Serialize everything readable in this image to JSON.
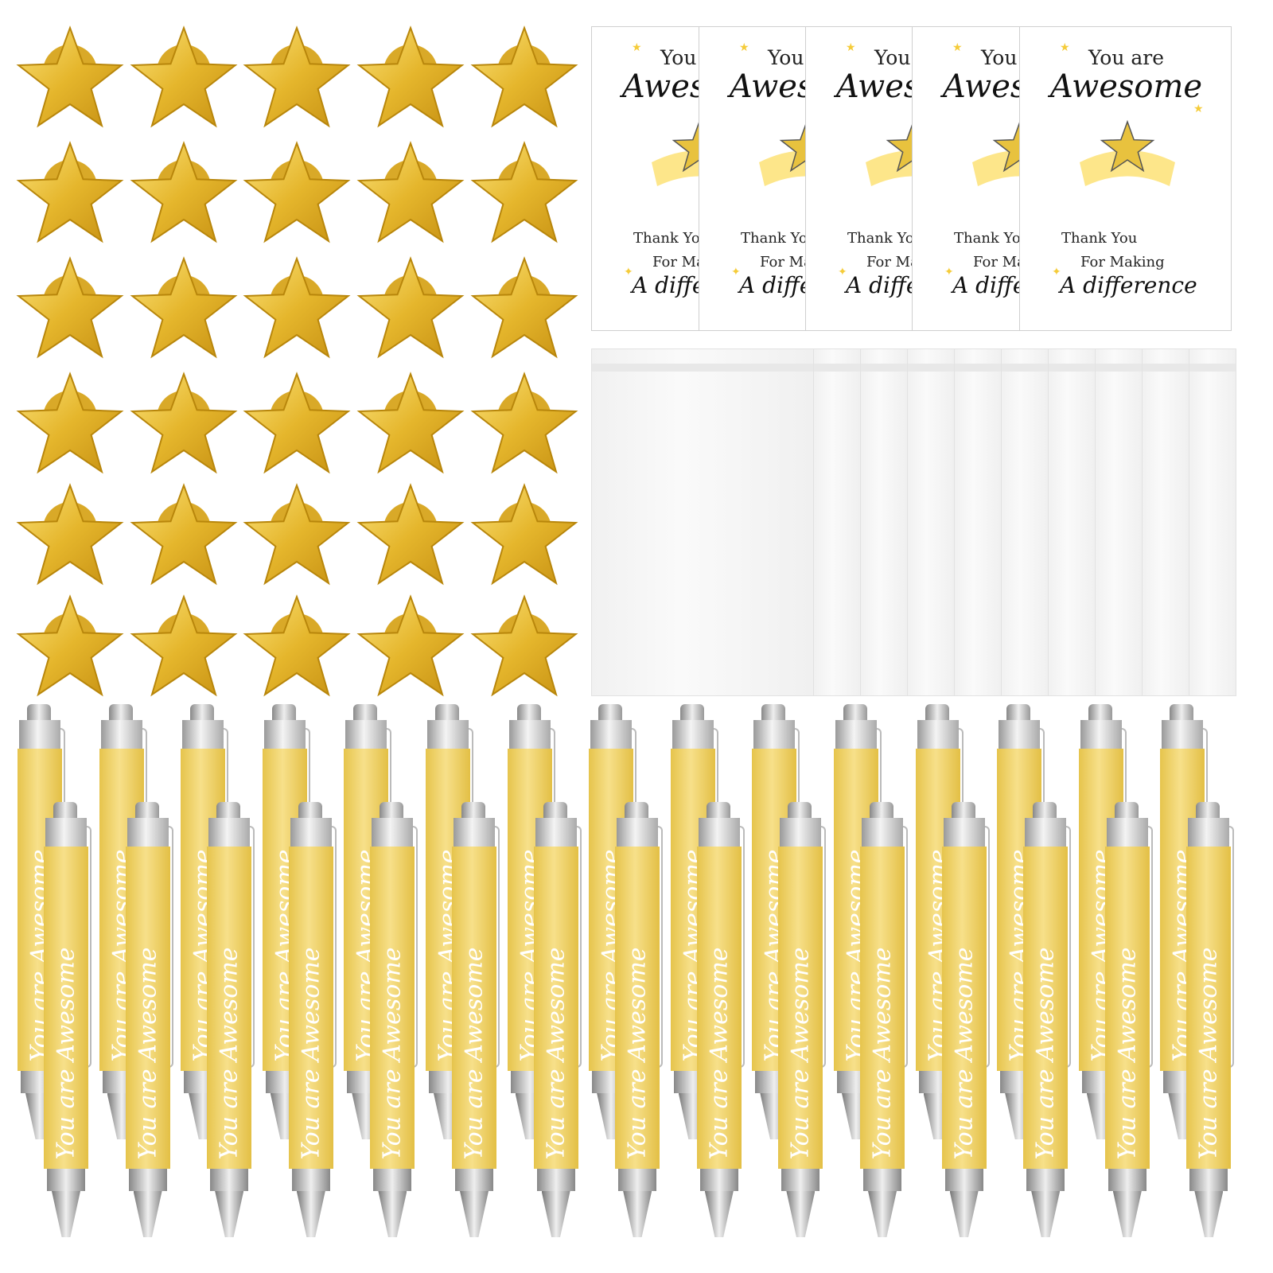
{
  "card": {
    "line1": "You are",
    "line2": "Awesome",
    "line3": "Thank You",
    "line4": "For Making",
    "line5": "A difference"
  },
  "pen": {
    "text": "You are Awesome"
  },
  "colors": {
    "gold": "#e8c23e",
    "pen_yellow": "#f0d566",
    "ribbon": "#fde68a"
  },
  "counts": {
    "star_pins": 30,
    "cards": 5,
    "bags": 10,
    "pens": 30
  }
}
